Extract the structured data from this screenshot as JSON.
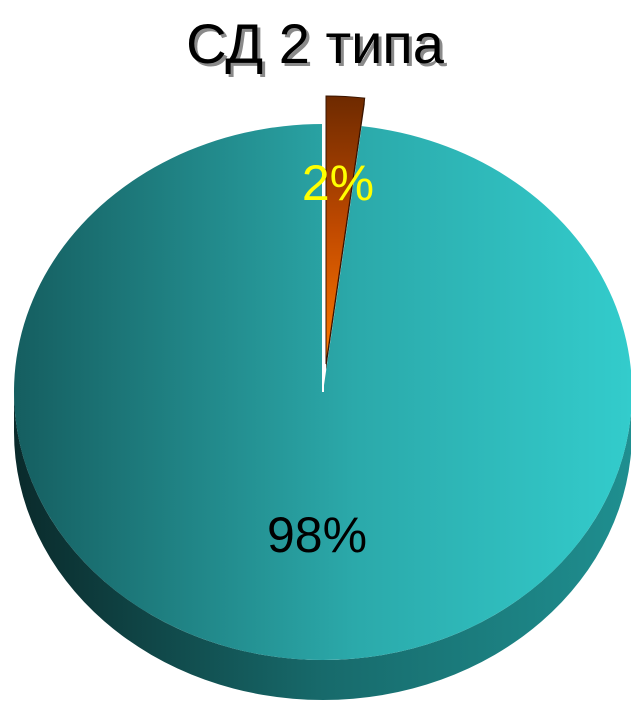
{
  "chart_data": {
    "type": "pie",
    "title": "СД 2 типа",
    "categories": [
      "",
      ""
    ],
    "values": [
      2,
      98
    ],
    "labels": [
      "2%",
      "98%"
    ],
    "colors": [
      "#ff6a00",
      "#2fb3b3"
    ],
    "label_colors": [
      "#ffff00",
      "#000000"
    ],
    "style": "3d-exploded",
    "legend": "none"
  }
}
